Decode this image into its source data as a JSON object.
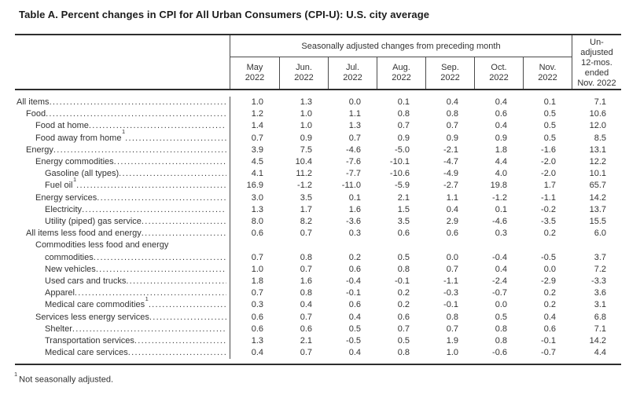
{
  "title": "Table A. Percent changes in CPI for All Urban Consumers (CPI-U): U.S. city average",
  "footnote": {
    "marker": "1",
    "text": "Not seasonally adjusted."
  },
  "table": {
    "span_header": "Seasonally adjusted changes from preceding month",
    "month_columns": [
      {
        "month": "May",
        "year": "2022"
      },
      {
        "month": "Jun.",
        "year": "2022"
      },
      {
        "month": "Jul.",
        "year": "2022"
      },
      {
        "month": "Aug.",
        "year": "2022"
      },
      {
        "month": "Sep.",
        "year": "2022"
      },
      {
        "month": "Oct.",
        "year": "2022"
      },
      {
        "month": "Nov.",
        "year": "2022"
      }
    ],
    "last_column_lines": [
      "Un-",
      "adjusted",
      "12-mos.",
      "ended",
      "Nov. 2022"
    ],
    "rows": [
      {
        "label": "All items",
        "indent": 0,
        "values": [
          "1.0",
          "1.3",
          "0.0",
          "0.1",
          "0.4",
          "0.4",
          "0.1",
          "7.1"
        ]
      },
      {
        "label": "Food",
        "indent": 1,
        "values": [
          "1.2",
          "1.0",
          "1.1",
          "0.8",
          "0.8",
          "0.6",
          "0.5",
          "10.6"
        ]
      },
      {
        "label": "Food at home",
        "indent": 2,
        "values": [
          "1.4",
          "1.0",
          "1.3",
          "0.7",
          "0.7",
          "0.4",
          "0.5",
          "12.0"
        ]
      },
      {
        "label": "Food away from home",
        "sup": "1",
        "indent": 2,
        "values": [
          "0.7",
          "0.9",
          "0.7",
          "0.9",
          "0.9",
          "0.9",
          "0.5",
          "8.5"
        ]
      },
      {
        "label": "Energy",
        "indent": 1,
        "values": [
          "3.9",
          "7.5",
          "-4.6",
          "-5.0",
          "-2.1",
          "1.8",
          "-1.6",
          "13.1"
        ]
      },
      {
        "label": "Energy commodities",
        "indent": 2,
        "values": [
          "4.5",
          "10.4",
          "-7.6",
          "-10.1",
          "-4.7",
          "4.4",
          "-2.0",
          "12.2"
        ]
      },
      {
        "label": "Gasoline (all types)",
        "indent": 3,
        "values": [
          "4.1",
          "11.2",
          "-7.7",
          "-10.6",
          "-4.9",
          "4.0",
          "-2.0",
          "10.1"
        ]
      },
      {
        "label": "Fuel oil",
        "sup": "1",
        "indent": 3,
        "values": [
          "16.9",
          "-1.2",
          "-11.0",
          "-5.9",
          "-2.7",
          "19.8",
          "1.7",
          "65.7"
        ]
      },
      {
        "label": "Energy services",
        "indent": 2,
        "values": [
          "3.0",
          "3.5",
          "0.1",
          "2.1",
          "1.1",
          "-1.2",
          "-1.1",
          "14.2"
        ]
      },
      {
        "label": "Electricity",
        "indent": 3,
        "values": [
          "1.3",
          "1.7",
          "1.6",
          "1.5",
          "0.4",
          "0.1",
          "-0.2",
          "13.7"
        ]
      },
      {
        "label": "Utility (piped) gas service",
        "indent": 3,
        "values": [
          "8.0",
          "8.2",
          "-3.6",
          "3.5",
          "2.9",
          "-4.6",
          "-3.5",
          "15.5"
        ]
      },
      {
        "label": "All items less food and energy",
        "indent": 1,
        "values": [
          "0.6",
          "0.7",
          "0.3",
          "0.6",
          "0.6",
          "0.3",
          "0.2",
          "6.0"
        ]
      },
      {
        "label_lines": [
          {
            "text": "Commodities less food and energy",
            "indent": 2
          },
          {
            "text": "commodities",
            "indent": 3
          }
        ],
        "values": [
          "0.7",
          "0.8",
          "0.2",
          "0.5",
          "0.0",
          "-0.4",
          "-0.5",
          "3.7"
        ]
      },
      {
        "label": "New vehicles",
        "indent": 3,
        "values": [
          "1.0",
          "0.7",
          "0.6",
          "0.8",
          "0.7",
          "0.4",
          "0.0",
          "7.2"
        ]
      },
      {
        "label": "Used cars and trucks",
        "indent": 3,
        "values": [
          "1.8",
          "1.6",
          "-0.4",
          "-0.1",
          "-1.1",
          "-2.4",
          "-2.9",
          "-3.3"
        ]
      },
      {
        "label": "Apparel",
        "indent": 3,
        "values": [
          "0.7",
          "0.8",
          "-0.1",
          "0.2",
          "-0.3",
          "-0.7",
          "0.2",
          "3.6"
        ]
      },
      {
        "label": "Medical care commodities",
        "sup": "1",
        "indent": 3,
        "values": [
          "0.3",
          "0.4",
          "0.6",
          "0.2",
          "-0.1",
          "0.0",
          "0.2",
          "3.1"
        ]
      },
      {
        "label": "Services less energy services",
        "indent": 2,
        "values": [
          "0.6",
          "0.7",
          "0.4",
          "0.6",
          "0.8",
          "0.5",
          "0.4",
          "6.8"
        ]
      },
      {
        "label": "Shelter",
        "indent": 3,
        "values": [
          "0.6",
          "0.6",
          "0.5",
          "0.7",
          "0.7",
          "0.8",
          "0.6",
          "7.1"
        ]
      },
      {
        "label": "Transportation services",
        "indent": 3,
        "values": [
          "1.3",
          "2.1",
          "-0.5",
          "0.5",
          "1.9",
          "0.8",
          "-0.1",
          "14.2"
        ]
      },
      {
        "label": "Medical care services",
        "indent": 3,
        "values": [
          "0.4",
          "0.7",
          "0.4",
          "0.8",
          "1.0",
          "-0.6",
          "-0.7",
          "4.4"
        ]
      }
    ]
  }
}
